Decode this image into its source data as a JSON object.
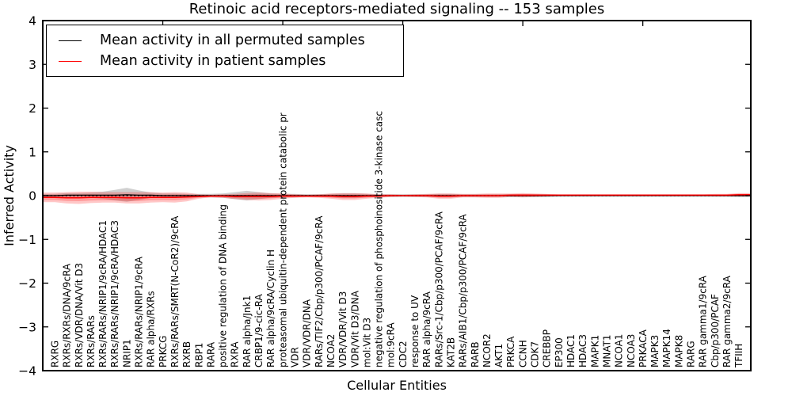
{
  "chart_data": {
    "type": "line",
    "title": "Retinoic acid receptors-mediated signaling -- 153 samples",
    "xlabel": "Cellular Entities",
    "ylabel": "Inferred Activity",
    "ylim": [
      -4,
      4
    ],
    "yticks": [
      -4,
      -3,
      -2,
      -1,
      0,
      1,
      2,
      3,
      4
    ],
    "ytick_labels": [
      "−4",
      "−3",
      "−2",
      "−1",
      "0",
      "1",
      "2",
      "3",
      "4"
    ],
    "xticks_major": [
      10,
      20,
      30,
      40,
      50
    ],
    "grid": "off",
    "legend_position": "upper left",
    "zero_line": {
      "y": 0,
      "style": "dotted",
      "color": "#000000"
    },
    "categories": [
      "RXRG",
      "RXRs/RXRs/DNA/9cRA",
      "RXRs/VDR/DNA/Vit D3",
      "RXRs/RARs",
      "RXRs/RARs/NRIP1/9cRA/HDAC1",
      "RXRs/RARs/NRIP1/9cRA/HDAC3",
      "NRIP1",
      "RXRs/RARs/NRIP1/9cRA",
      "RAR alpha/RXRs",
      "PRKCG",
      "RXRs/RARs/SMRT(N-CoR2)/9cRA",
      "RXRB",
      "RBP1",
      "RARA",
      "positive regulation of DNA binding",
      "RXRA",
      "RAR alpha/Jnk1",
      "CRBP1/9-cic-RA",
      "RAR alpha/9cRA/Cyclin H",
      "proteasomal ubiquitin-dependent protein catabolic pr",
      "VDR",
      "VDR/VDR/DNA",
      "RARs/TIF2/Cbp/p300/PCAF/9cRA",
      "NCOA2",
      "VDR/VDR/Vit D3",
      "VDR/Vit D3/DNA",
      "mol:Vit D3",
      "negative regulation of phosphoinositide 3-kinase casc",
      "mol:9cRA",
      "CDC2",
      "response to UV",
      "RAR alpha/9cRA",
      "RARs/Src-1/Cbp/p300/PCAF/9cRA",
      "KAT2B",
      "RARs/AIB1/Cbp/p300/PCAF/9cRA",
      "RARB",
      "NCOR2",
      "AKT1",
      "PRKCA",
      "CCNH",
      "CDK7",
      "CREBBP",
      "EP300",
      "HDAC1",
      "HDAC3",
      "MAPK1",
      "MNAT1",
      "NCOA1",
      "NCOA3",
      "PRKACA",
      "MAPK3",
      "MAPK14",
      "MAPK8",
      "RARG",
      "RAR gamma1/9cRA",
      "Cbp/p300/PCAF",
      "RAR gamma2/9cRA",
      "TFIIH"
    ],
    "series": [
      {
        "name": "Mean activity in all permuted samples",
        "color": "#000000",
        "values": [
          0,
          0.01,
          0.01,
          0.01,
          0.01,
          0.01,
          0.02,
          0.01,
          0.01,
          0,
          0,
          0,
          0,
          0,
          0,
          0,
          0,
          0,
          0,
          0,
          0,
          0,
          0,
          0,
          0,
          0,
          0,
          0,
          0,
          0,
          0,
          0,
          0,
          0,
          0,
          0,
          0,
          0,
          0,
          0,
          0,
          0,
          0,
          0,
          0,
          0,
          0,
          0,
          0,
          0,
          0,
          0,
          0,
          0,
          0,
          0,
          0,
          0
        ]
      },
      {
        "name": "Mean activity in patient samples",
        "color": "#ff0000",
        "values": [
          -0.04,
          -0.05,
          -0.05,
          -0.04,
          -0.04,
          -0.04,
          -0.05,
          -0.05,
          -0.04,
          -0.04,
          -0.04,
          -0.03,
          -0.02,
          -0.01,
          -0.01,
          -0.02,
          -0.02,
          -0.02,
          -0.02,
          -0.01,
          -0.01,
          -0.01,
          -0.01,
          -0.01,
          -0.02,
          -0.02,
          -0.01,
          -0.01,
          0,
          0,
          0,
          0,
          -0.01,
          -0.01,
          0,
          0,
          0,
          0,
          0.01,
          0.01,
          0.01,
          0.01,
          0.01,
          0.01,
          0.01,
          0.01,
          0.01,
          0.01,
          0.01,
          0.01,
          0.01,
          0.01,
          0.01,
          0.01,
          0.01,
          0.01,
          0.01,
          0.02
        ]
      }
    ],
    "bands": [
      {
        "name": "permuted-spread",
        "color": "#8a8a8a",
        "opacity": 0.4,
        "center_series": 0,
        "layer_scales": [
          1
        ],
        "half_widths": [
          0.04,
          0.05,
          0.05,
          0.06,
          0.08,
          0.12,
          0.16,
          0.11,
          0.06,
          0.05,
          0.05,
          0.04,
          0.04,
          0.04,
          0.05,
          0.08,
          0.11,
          0.08,
          0.05,
          0.04,
          0.04,
          0.03,
          0.03,
          0.04,
          0.05,
          0.05,
          0.04,
          0.03,
          0.03,
          0.03,
          0.03,
          0.03,
          0.04,
          0.04,
          0.03,
          0.03,
          0.03,
          0.03,
          0.03,
          0.03,
          0.03,
          0.03,
          0.02,
          0.02,
          0.02,
          0.02,
          0.02,
          0.02,
          0.02,
          0.02,
          0.02,
          0.02,
          0.02,
          0.02,
          0.02,
          0.02,
          0.02,
          0.03
        ]
      },
      {
        "name": "patient-spread",
        "color": "#ff0000",
        "opacity": 0.22,
        "center_series": 1,
        "layer_scales": [
          1,
          0.55
        ],
        "half_widths": [
          0.11,
          0.13,
          0.14,
          0.13,
          0.12,
          0.12,
          0.13,
          0.13,
          0.12,
          0.11,
          0.12,
          0.1,
          0.05,
          0.03,
          0.04,
          0.06,
          0.08,
          0.09,
          0.08,
          0.06,
          0.04,
          0.03,
          0.04,
          0.06,
          0.08,
          0.08,
          0.06,
          0.04,
          0.03,
          0.02,
          0.03,
          0.04,
          0.06,
          0.06,
          0.04,
          0.04,
          0.05,
          0.05,
          0.04,
          0.05,
          0.04,
          0.03,
          0.02,
          0.02,
          0.02,
          0.02,
          0.02,
          0.02,
          0.02,
          0.02,
          0.02,
          0.02,
          0.02,
          0.02,
          0.02,
          0.03,
          0.03,
          0.04
        ]
      }
    ]
  }
}
